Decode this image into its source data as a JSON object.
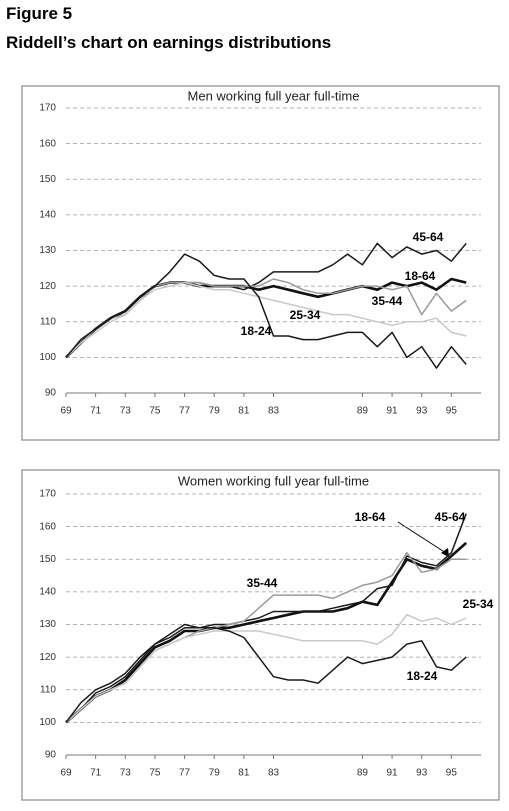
{
  "figure": {
    "label": "Figure 5",
    "title": "Riddell’s chart on earnings distributions"
  },
  "chart_data": [
    {
      "type": "line",
      "title": "Men working full year full-time",
      "x": [
        69,
        70,
        71,
        72,
        73,
        74,
        75,
        76,
        77,
        78,
        79,
        80,
        81,
        82,
        83,
        84,
        85,
        86,
        87,
        88,
        89,
        90,
        91,
        92,
        93,
        94,
        95,
        96
      ],
      "xlim": [
        69,
        97
      ],
      "xticks": [
        69,
        71,
        73,
        75,
        77,
        79,
        81,
        83,
        89,
        91,
        93,
        95
      ],
      "ylim": [
        90,
        170
      ],
      "yticks": [
        90,
        100,
        110,
        120,
        130,
        140,
        150,
        160,
        170
      ],
      "grid": true,
      "series": [
        {
          "name": "18-64",
          "color": "#111111",
          "values": [
            100,
            104,
            108,
            111,
            113,
            117,
            120,
            121,
            121,
            120,
            120,
            120,
            120,
            119,
            120,
            119,
            118,
            117,
            118,
            119,
            120,
            119,
            121,
            120,
            121,
            119,
            122,
            121
          ]
        },
        {
          "name": "45-64",
          "color": "#1a1a1a",
          "values": [
            100,
            104,
            108,
            111,
            113,
            117,
            120,
            121,
            121,
            121,
            120,
            120,
            119,
            121,
            124,
            124,
            124,
            124,
            126,
            129,
            126,
            132,
            128,
            131,
            129,
            130,
            127,
            132
          ]
        },
        {
          "name": "35-44",
          "color": "#9a9a9a",
          "values": [
            100,
            104,
            108,
            111,
            112,
            116,
            120,
            121,
            121,
            121,
            120,
            120,
            120,
            120,
            122,
            121,
            119,
            118,
            118,
            119,
            120,
            120,
            119,
            120,
            112,
            118,
            113,
            116
          ]
        },
        {
          "name": "25-34",
          "color": "#c8c8c8",
          "values": [
            100,
            104,
            107,
            110,
            112,
            116,
            119,
            120,
            121,
            120,
            119,
            119,
            118,
            117,
            116,
            115,
            114,
            113,
            112,
            112,
            111,
            110,
            109,
            110,
            110,
            111,
            107,
            106
          ]
        },
        {
          "name": "18-24",
          "color": "#1a1a1a",
          "values": [
            100,
            105,
            108,
            111,
            113,
            117,
            120,
            124,
            129,
            127,
            123,
            122,
            122,
            117,
            106,
            106,
            105,
            105,
            106,
            107,
            107,
            103,
            107,
            100,
            103,
            97,
            103,
            98
          ]
        }
      ]
    },
    {
      "type": "line",
      "title": "Women working full year full-time",
      "x": [
        69,
        70,
        71,
        72,
        73,
        74,
        75,
        76,
        77,
        78,
        79,
        80,
        81,
        82,
        83,
        84,
        85,
        86,
        87,
        88,
        89,
        90,
        91,
        92,
        93,
        94,
        95,
        96
      ],
      "xlim": [
        69,
        97
      ],
      "xticks": [
        69,
        71,
        73,
        75,
        77,
        79,
        81,
        83,
        89,
        91,
        93,
        95
      ],
      "ylim": [
        90,
        170
      ],
      "yticks": [
        90,
        100,
        110,
        120,
        130,
        140,
        150,
        160,
        170
      ],
      "grid": true,
      "series": [
        {
          "name": "18-64",
          "color": "#111111",
          "values": [
            100,
            104,
            108,
            110,
            113,
            118,
            123,
            125,
            128,
            128,
            129,
            129,
            130,
            131,
            132,
            133,
            134,
            134,
            134,
            135,
            137,
            136,
            143,
            150,
            148,
            147,
            151,
            155
          ]
        },
        {
          "name": "45-64",
          "color": "#1a1a1a",
          "values": [
            100,
            104,
            109,
            111,
            114,
            119,
            124,
            126,
            129,
            129,
            130,
            130,
            131,
            132,
            134,
            134,
            134,
            134,
            135,
            136,
            137,
            141,
            142,
            151,
            149,
            148,
            152,
            164
          ]
        },
        {
          "name": "35-44",
          "color": "#9a9a9a",
          "values": [
            100,
            104,
            108,
            110,
            112,
            117,
            122,
            124,
            126,
            128,
            129,
            130,
            131,
            135,
            139,
            139,
            139,
            139,
            138,
            140,
            142,
            143,
            145,
            152,
            146,
            147,
            150,
            150
          ]
        },
        {
          "name": "25-34",
          "color": "#c8c8c8",
          "values": [
            100,
            104,
            108,
            110,
            112,
            117,
            122,
            124,
            126,
            127,
            128,
            128,
            128,
            128,
            127,
            126,
            125,
            125,
            125,
            125,
            125,
            124,
            127,
            133,
            131,
            132,
            130,
            132
          ]
        },
        {
          "name": "18-24",
          "color": "#1a1a1a",
          "values": [
            100,
            106,
            110,
            112,
            115,
            120,
            124,
            127,
            130,
            129,
            129,
            128,
            126,
            120,
            114,
            113,
            113,
            112,
            116,
            120,
            118,
            119,
            120,
            124,
            125,
            117,
            116,
            120
          ]
        }
      ]
    }
  ]
}
